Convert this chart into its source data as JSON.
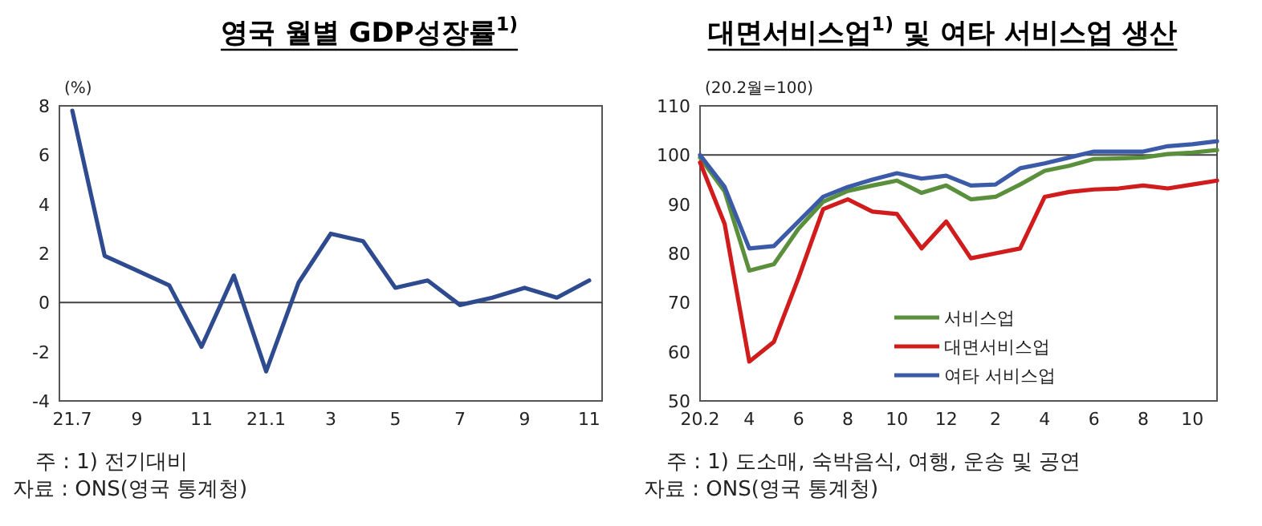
{
  "chart_data": [
    {
      "type": "line",
      "title": "영국 월별 GDP성장률$^{1)}$",
      "ylabel": "(%)",
      "categories": [
        "21.7",
        null,
        "9",
        null,
        "11",
        null,
        "21.1",
        null,
        "3",
        null,
        "5",
        null,
        "7",
        null,
        "9",
        null,
        "11"
      ],
      "series": [
        {
          "color": "#2e4b8f",
          "values": [
            7.8,
            1.9,
            1.3,
            0.7,
            -1.8,
            1.1,
            -2.8,
            0.8,
            2.8,
            2.5,
            0.6,
            0.9,
            -0.1,
            0.2,
            0.6,
            0.2,
            0.9
          ]
        }
      ],
      "ylim": [
        -4,
        8
      ],
      "yticks": [
        -4,
        -2,
        0,
        2,
        4,
        6,
        8
      ],
      "ref_lines": [
        {
          "axis": "y",
          "value": 0,
          "color": "#404040"
        }
      ],
      "annotations": [
        "주 : 1) 전기대비",
        "자료 : ONS(영국 통계청)"
      ]
    },
    {
      "type": "line",
      "title": "대면서비스업$^{1)}$ 및 여타 서비스업 생산",
      "ylabel": "(20.2월=100)",
      "categories": [
        "20.2",
        null,
        "4",
        null,
        "6",
        null,
        "8",
        null,
        "10",
        null,
        "12",
        null,
        "2",
        null,
        "4",
        null,
        "6",
        null,
        "8",
        null,
        "10",
        null
      ],
      "series": [
        {
          "name": "서비스업",
          "color": "#5a8f3c",
          "values": [
            99.5,
            92.6,
            76.5,
            77.8,
            85,
            90.5,
            92.7,
            93.8,
            94.8,
            92.3,
            93.8,
            91,
            91.5,
            94,
            96.8,
            97.8,
            99.2,
            99.3,
            99.5,
            100.2,
            100.5,
            101
          ]
        },
        {
          "name": "대면서비스업",
          "color": "#d01c1c",
          "values": [
            98.5,
            86,
            58,
            62,
            75,
            89,
            91,
            88.5,
            88,
            81,
            86.5,
            79,
            80,
            81,
            91.5,
            92.5,
            93,
            93.2,
            93.8,
            93.2,
            94,
            94.8
          ]
        },
        {
          "name": "여타 서비스업",
          "color": "#3b5ba8",
          "values": [
            100,
            93.5,
            81,
            81.5,
            86.5,
            91.5,
            93.5,
            95,
            96.3,
            95.2,
            95.8,
            93.8,
            94,
            97.3,
            98.3,
            99.5,
            100.7,
            100.7,
            100.7,
            101.8,
            102.2,
            102.8
          ]
        }
      ],
      "ylim": [
        50,
        110
      ],
      "yticks": [
        50,
        60,
        70,
        80,
        90,
        100,
        110
      ],
      "ref_lines": [
        {
          "axis": "y",
          "value": 100,
          "color": "#404040"
        }
      ],
      "legend": "bottom",
      "annotations": [
        "주 : 1) 도소매, 숙박음식, 여행, 운송 및 공연",
        "자료 : ONS(영국 통계청)"
      ]
    }
  ]
}
